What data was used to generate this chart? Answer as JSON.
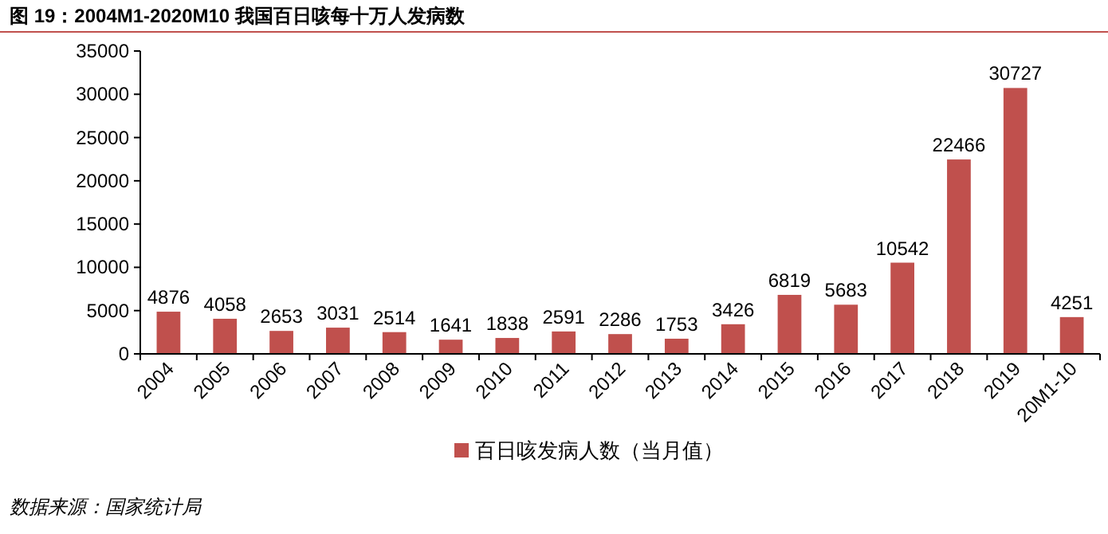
{
  "chart_data": {
    "type": "bar",
    "title": "图 19：2004M1-2020M10 我国百日咳每十万人发病数",
    "categories": [
      "2004",
      "2005",
      "2006",
      "2007",
      "2008",
      "2009",
      "2010",
      "2011",
      "2012",
      "2013",
      "2014",
      "2015",
      "2016",
      "2017",
      "2018",
      "2019",
      "20M1-10"
    ],
    "series": [
      {
        "name": "百日咳发病人数（当月值）",
        "color": "#c0504d",
        "values": [
          4876,
          4058,
          2653,
          3031,
          2514,
          1641,
          1838,
          2591,
          2286,
          1753,
          3426,
          6819,
          5683,
          10542,
          22466,
          30727,
          4251
        ]
      }
    ],
    "ylim": [
      0,
      35000
    ],
    "yticks": [
      0,
      5000,
      10000,
      15000,
      20000,
      25000,
      30000,
      35000
    ],
    "data_labels": true,
    "grid": false,
    "legend": "bottom",
    "annotations": [
      "数据来源：国家统计局"
    ]
  }
}
